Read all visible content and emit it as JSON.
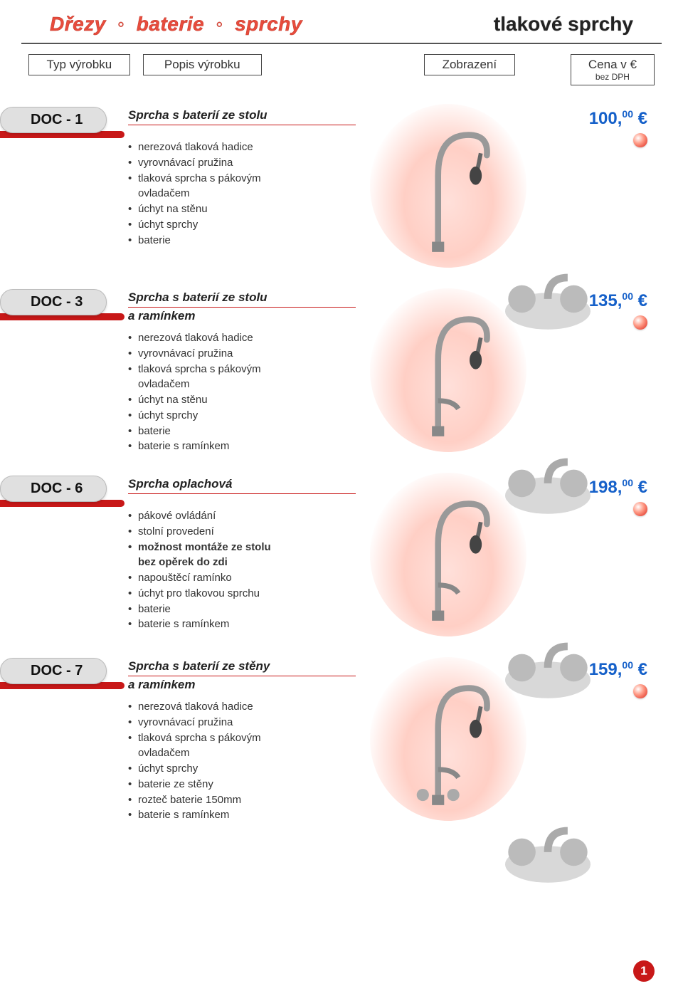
{
  "header": {
    "left_parts": [
      "Dřezy",
      "baterie",
      "sprchy"
    ],
    "right": "tlakové sprchy"
  },
  "columns": {
    "type": "Typ výrobku",
    "desc": "Popis výrobku",
    "image": "Zobrazení",
    "price": "Cena v €",
    "price_sub": "bez DPH"
  },
  "products": [
    {
      "code": "DOC - 1",
      "title": "Sprcha s baterií ze stolu",
      "subtitle": "",
      "features": [
        {
          "text": "nerezová tlaková hadice"
        },
        {
          "text": "vyrovnávací pružina"
        },
        {
          "text": "tlaková sprcha s pákovým"
        },
        {
          "text": "ovladačem",
          "nobullet": true
        },
        {
          "text": "úchyt na stěnu"
        },
        {
          "text": "úchyt sprchy"
        },
        {
          "text": "baterie"
        }
      ],
      "price_int": "100,",
      "price_dec": "00",
      "currency": "€"
    },
    {
      "code": "DOC - 3",
      "title": "Sprcha s baterií ze stolu",
      "subtitle": "a ramínkem",
      "features": [
        {
          "text": "nerezová tlaková hadice"
        },
        {
          "text": "vyrovnávací pružina"
        },
        {
          "text": "tlaková sprcha s pákovým"
        },
        {
          "text": "ovladačem",
          "nobullet": true
        },
        {
          "text": "úchyt na stěnu"
        },
        {
          "text": "úchyt sprchy"
        },
        {
          "text": "baterie"
        },
        {
          "text": "baterie s ramínkem"
        }
      ],
      "price_int": "135,",
      "price_dec": "00",
      "currency": "€"
    },
    {
      "code": "DOC - 6",
      "title": "Sprcha oplachová",
      "subtitle": "",
      "features": [
        {
          "text": "pákové ovládání"
        },
        {
          "text": "stolní provedení"
        },
        {
          "text": "možnost montáže ze stolu",
          "bold": true
        },
        {
          "text": "bez opěrek do zdi",
          "bold": true,
          "nobullet": true
        },
        {
          "text": "napouštěcí ramínko"
        },
        {
          "text": "úchyt pro tlakovou sprchu"
        },
        {
          "text": "baterie"
        },
        {
          "text": "baterie s ramínkem"
        }
      ],
      "price_int": "198,",
      "price_dec": "00",
      "currency": "€"
    },
    {
      "code": "DOC - 7",
      "title": "Sprcha s baterií ze stěny",
      "subtitle": "a ramínkem",
      "features": [
        {
          "text": "nerezová tlaková hadice"
        },
        {
          "text": "vyrovnávací pružina"
        },
        {
          "text": "tlaková sprcha s pákovým"
        },
        {
          "text": "ovladačem",
          "nobullet": true
        },
        {
          "text": "úchyt sprchy"
        },
        {
          "text": "baterie ze stěny"
        },
        {
          "text": "rozteč baterie 150mm"
        },
        {
          "text": "baterie s ramínkem"
        }
      ],
      "price_int": "159,",
      "price_dec": "00",
      "currency": "€"
    }
  ],
  "page_number": "1",
  "colors": {
    "accent_red": "#c81818",
    "header_red": "#e84c3d",
    "price_blue": "#1560c9"
  }
}
